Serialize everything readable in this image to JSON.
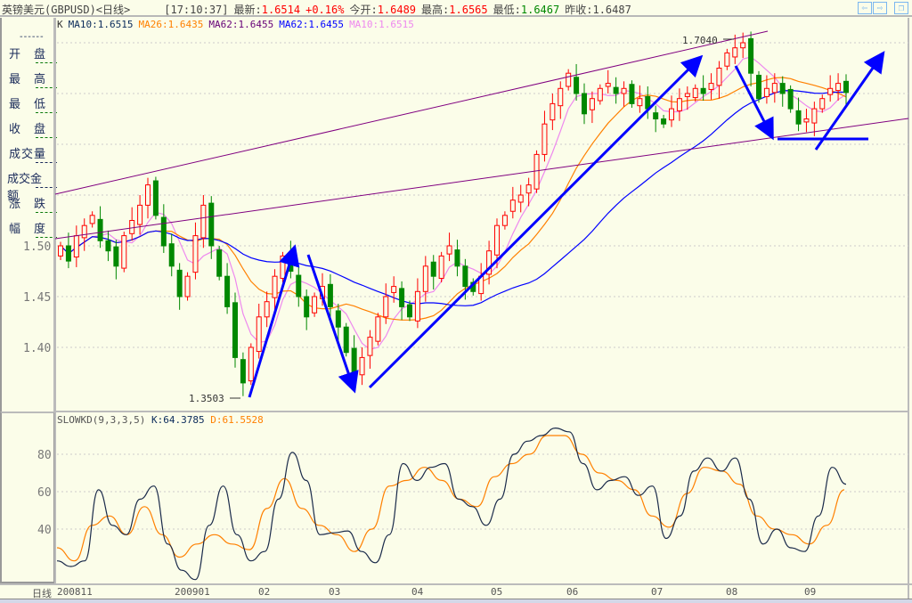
{
  "header": {
    "title": "英镑美元(GBPUSD)<日线>",
    "time": "[17:10:37]",
    "latest_label": "最新:",
    "latest": "1.6514",
    "change": "+0.16%",
    "open_label": "今开:",
    "open": "1.6489",
    "high_label": "最高:",
    "high": "1.6565",
    "low_label": "最低:",
    "low": "1.6467",
    "prev_label": "昨收:",
    "prev": "1.6487"
  },
  "nav": {
    "prev_icon": "arrow-left-icon",
    "next_icon": "arrow-right-icon",
    "restore_icon": "window-restore-icon",
    "prev": "⇦",
    "next": "⇨",
    "restore": "❐"
  },
  "left_panel": {
    "top_dash": "------",
    "items": [
      "开　盘",
      "最　高",
      "最　低",
      "收　盘",
      "成交量",
      "成交金额",
      "涨　跌",
      "幅　度"
    ]
  },
  "ma_legend": [
    {
      "text": "K",
      "color": "#333333"
    },
    {
      "text": "MA10:1.6515",
      "color": "#0a2a5a"
    },
    {
      "text": "MA26:1.6435",
      "color": "#ff8000"
    },
    {
      "text": "MA62:1.6455",
      "color": "#660077"
    },
    {
      "text": "MA62:1.6455",
      "color": "#0000ff"
    },
    {
      "text": "MA10:1.6515",
      "color": "#ee88ee"
    }
  ],
  "kd_legend": {
    "name": "SLOWKD(9,3,3,5)",
    "k": "K:64.3785",
    "d": "D:61.5528",
    "k_color": "#0a2a5a",
    "d_color": "#ff8000"
  },
  "annotations": {
    "low_mark": "1.3503",
    "high_mark": "1.7040"
  },
  "axis": {
    "period_label": "日线",
    "ticks": [
      "200811",
      "200901",
      "02",
      "03",
      "04",
      "05",
      "06",
      "07",
      "08",
      "09"
    ]
  },
  "colors": {
    "up": "#ff0000",
    "down": "#008000",
    "background": "#fbfde9",
    "arrow": "#0000ff",
    "channel": "#800080"
  },
  "chart_data": [
    {
      "type": "candlestick",
      "title": "英镑美元(GBPUSD)",
      "ylim": [
        1.33,
        1.72
      ],
      "yticks": [
        "1.40",
        "1.45",
        "1.50"
      ],
      "grid": true,
      "closes": [
        1.5,
        1.485,
        1.51,
        1.52,
        1.53,
        1.505,
        1.495,
        1.48,
        1.51,
        1.525,
        1.54,
        1.56,
        1.53,
        1.5,
        1.48,
        1.45,
        1.47,
        1.51,
        1.54,
        1.5,
        1.47,
        1.44,
        1.39,
        1.365,
        1.4,
        1.43,
        1.445,
        1.47,
        1.49,
        1.475,
        1.45,
        1.43,
        1.45,
        1.46,
        1.44,
        1.42,
        1.395,
        1.375,
        1.39,
        1.41,
        1.43,
        1.45,
        1.46,
        1.44,
        1.43,
        1.455,
        1.48,
        1.47,
        1.49,
        1.5,
        1.48,
        1.46,
        1.455,
        1.47,
        1.495,
        1.52,
        1.53,
        1.545,
        1.55,
        1.56,
        1.59,
        1.62,
        1.64,
        1.655,
        1.67,
        1.65,
        1.63,
        1.645,
        1.655,
        1.66,
        1.65,
        1.655,
        1.64,
        1.645,
        1.635,
        1.625,
        1.62,
        1.635,
        1.645,
        1.65,
        1.655,
        1.65,
        1.66,
        1.675,
        1.69,
        1.695,
        1.7,
        1.67,
        1.645,
        1.655,
        1.66,
        1.65,
        1.635,
        1.62,
        1.625,
        1.635,
        1.645,
        1.655,
        1.66,
        1.651
      ]
    },
    {
      "type": "line",
      "title": "SLOWKD(9,3,3,5)",
      "ylim": [
        5,
        100
      ],
      "yticks": [
        "40",
        "60",
        "80"
      ],
      "series": [
        {
          "name": "K",
          "values": [
            23,
            20,
            23,
            61,
            42,
            37,
            56,
            63,
            32,
            18,
            13,
            42,
            63,
            37,
            23,
            28,
            56,
            81,
            66,
            37,
            38,
            39,
            28,
            22,
            37,
            75,
            66,
            73,
            75,
            56,
            52,
            42,
            56,
            80,
            87,
            90,
            94,
            92,
            75,
            61,
            66,
            68,
            58,
            63,
            35,
            47,
            71,
            78,
            71,
            78,
            56,
            32,
            40,
            30,
            28,
            47,
            73,
            64
          ]
        },
        {
          "name": "D",
          "values": [
            30,
            23,
            42,
            47,
            37,
            52,
            37,
            25,
            32,
            37,
            32,
            29,
            51,
            67,
            51,
            42,
            37,
            28,
            40,
            63,
            66,
            73,
            66,
            56,
            52,
            68,
            75,
            80,
            90,
            90,
            80,
            70,
            66,
            61,
            47,
            41,
            59,
            73,
            71,
            64,
            47,
            40,
            37,
            32,
            42,
            61
          ]
        }
      ]
    }
  ]
}
